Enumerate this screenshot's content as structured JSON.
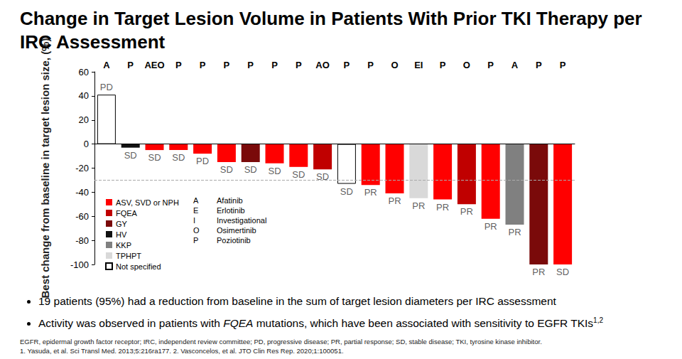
{
  "chart_data": {
    "type": "bar",
    "title": "Change in Target Lesion Volume in Patients With Prior TKI Therapy per IRC Assessment",
    "ylabel": "Best change from baseline in target lesion size, (%)",
    "categories": [
      "A",
      "P",
      "AEO",
      "P",
      "P",
      "P",
      "P",
      "P",
      "P",
      "AO",
      "P",
      "P",
      "O",
      "EI",
      "P",
      "O",
      "P",
      "A",
      "P",
      "P"
    ],
    "response": [
      "PD",
      "SD",
      "SD",
      "SD",
      "PD",
      "SD",
      "SD",
      "SD",
      "SD",
      "SD",
      "SD",
      "PR",
      "PR",
      "PR",
      "PR",
      "PR",
      "PR",
      "PR",
      "PR",
      "SD"
    ],
    "series": [
      {
        "name": "ASV, SVD or NPH",
        "color": "#ff0000",
        "values": [
          null,
          null,
          -5,
          -5,
          -8,
          -15,
          null,
          -16,
          -19,
          null,
          null,
          -34,
          -41,
          null,
          -46,
          null,
          -62,
          null,
          null,
          -100
        ]
      },
      {
        "name": "FQEA",
        "color": "#c00000",
        "values": [
          null,
          null,
          null,
          null,
          null,
          null,
          null,
          null,
          null,
          -21,
          null,
          null,
          null,
          null,
          null,
          -50,
          null,
          null,
          null,
          null
        ]
      },
      {
        "name": "GY",
        "color": "#7a0a0a",
        "values": [
          null,
          null,
          null,
          null,
          null,
          null,
          -15,
          null,
          null,
          null,
          null,
          null,
          null,
          null,
          null,
          null,
          null,
          null,
          -100,
          null
        ]
      },
      {
        "name": "HV",
        "color": "#111111",
        "values": [
          null,
          -3,
          null,
          null,
          null,
          null,
          null,
          null,
          null,
          null,
          null,
          null,
          null,
          null,
          null,
          null,
          null,
          null,
          null,
          null
        ]
      },
      {
        "name": "KKP",
        "color": "#808080",
        "values": [
          null,
          null,
          null,
          null,
          null,
          null,
          null,
          null,
          null,
          null,
          null,
          null,
          null,
          null,
          null,
          null,
          null,
          -67,
          null,
          null
        ]
      },
      {
        "name": "TPHPT",
        "color": "#d9d9d9",
        "values": [
          null,
          null,
          null,
          null,
          null,
          null,
          null,
          null,
          null,
          null,
          null,
          null,
          null,
          -45,
          null,
          null,
          null,
          null,
          null,
          null
        ]
      },
      {
        "name": "Not specified",
        "color": "#ffffff",
        "values": [
          41,
          null,
          null,
          null,
          null,
          null,
          null,
          null,
          null,
          null,
          -33,
          null,
          null,
          null,
          null,
          null,
          null,
          null,
          null,
          null
        ]
      }
    ],
    "reference_line": -30,
    "drug_key": [
      {
        "code": "A",
        "name": "Afatinib"
      },
      {
        "code": "E",
        "name": "Erlotinib"
      },
      {
        "code": "I",
        "name": "Investigational"
      },
      {
        "code": "O",
        "name": "Osimertinib"
      },
      {
        "code": "P",
        "name": "Poziotinib"
      }
    ],
    "ylim": [
      -100,
      60
    ],
    "yticks": [
      -100,
      -80,
      -60,
      -40,
      -20,
      0,
      20,
      40,
      60
    ],
    "grid": false,
    "legend": "lower left"
  },
  "bullets": [
    {
      "text": "19 patients (95%) had a reduction from baseline in the sum of target lesion diameters per IRC assessment"
    },
    {
      "text": "Activity was observed in patients with FQEA mutations, which have been associated with sensitivity to EGFR TKIs",
      "italic": "FQEA",
      "superscript": "1,2"
    }
  ],
  "footnotes": [
    "EGFR, epidermal growth factor receptor; IRC, independent review committee; PD, progressive disease; PR, partial response; SD, stable disease; TKI, tyrosine kinase inhibitor.",
    "1. Yasuda, et al. Sci Transl Med. 2013;5:216ra177. 2. Vasconcelos, et al. JTO Clin Res Rep. 2020;1:100051."
  ]
}
